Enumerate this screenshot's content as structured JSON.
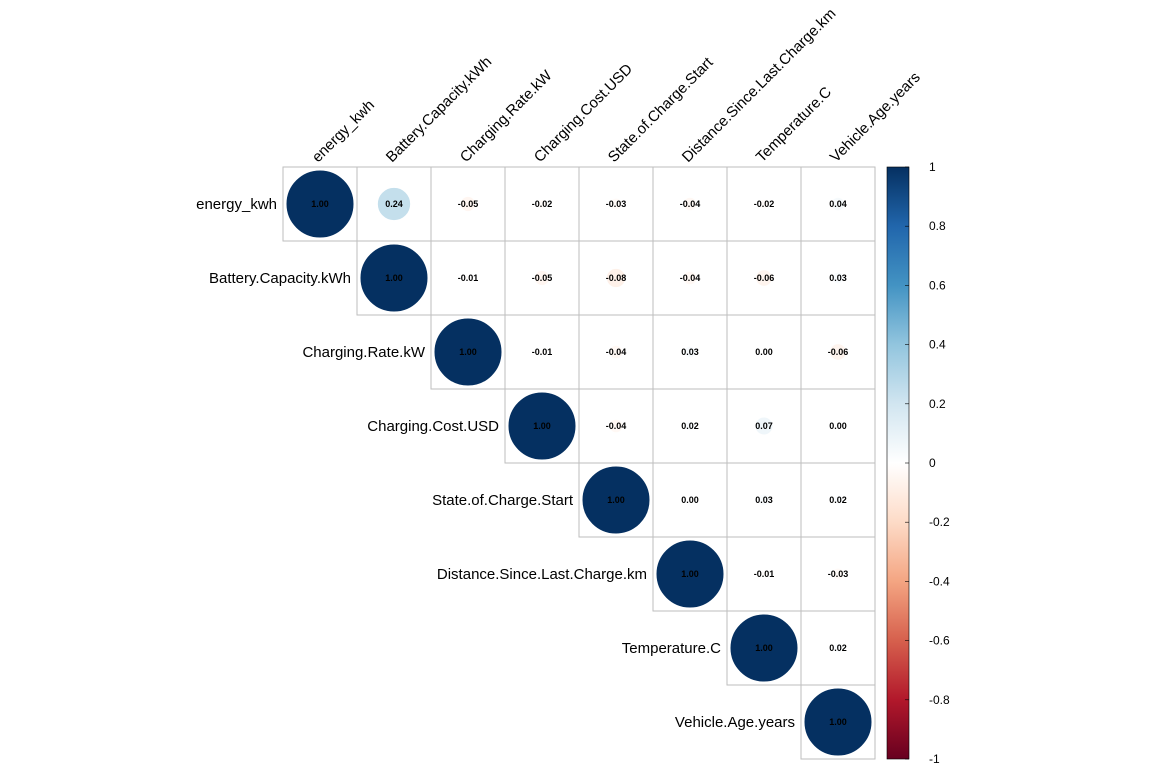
{
  "chart_data": {
    "type": "heatmap",
    "style": "corrplot-circle-upper",
    "variables": [
      "energy_kwh",
      "Battery.Capacity.kWh",
      "Charging.Rate.kW",
      "Charging.Cost.USD",
      "State.of.Charge.Start",
      "Distance.Since.Last.Charge.km",
      "Temperature.C",
      "Vehicle.Age.years"
    ],
    "matrix_upper": [
      [
        "1.00",
        "0.24",
        "-0.05",
        "-0.02",
        "-0.03",
        "-0.04",
        "-0.02",
        "0.04"
      ],
      [
        "1.00",
        "-0.01",
        "-0.05",
        "-0.08",
        "-0.04",
        "-0.06",
        "0.03"
      ],
      [
        "1.00",
        "-0.01",
        "-0.04",
        "0.03",
        "0.00",
        "-0.06"
      ],
      [
        "1.00",
        "-0.04",
        "0.02",
        "0.07",
        "0.00"
      ],
      [
        "1.00",
        "0.00",
        "0.03",
        "0.02"
      ],
      [
        "1.00",
        "-0.01",
        "-0.03"
      ],
      [
        "1.00",
        "0.02"
      ],
      [
        "1.00"
      ]
    ],
    "colorbar": {
      "range": [
        -1,
        1
      ],
      "ticks": [
        "1",
        "0.8",
        "0.6",
        "0.4",
        "0.2",
        "0",
        "-0.2",
        "-0.4",
        "-0.6",
        "-0.8",
        "-1"
      ],
      "low_color": "#67001F",
      "mid_color": "#FFFFFF",
      "high_color": "#053061"
    },
    "grid": true,
    "legend_placement": "right"
  }
}
